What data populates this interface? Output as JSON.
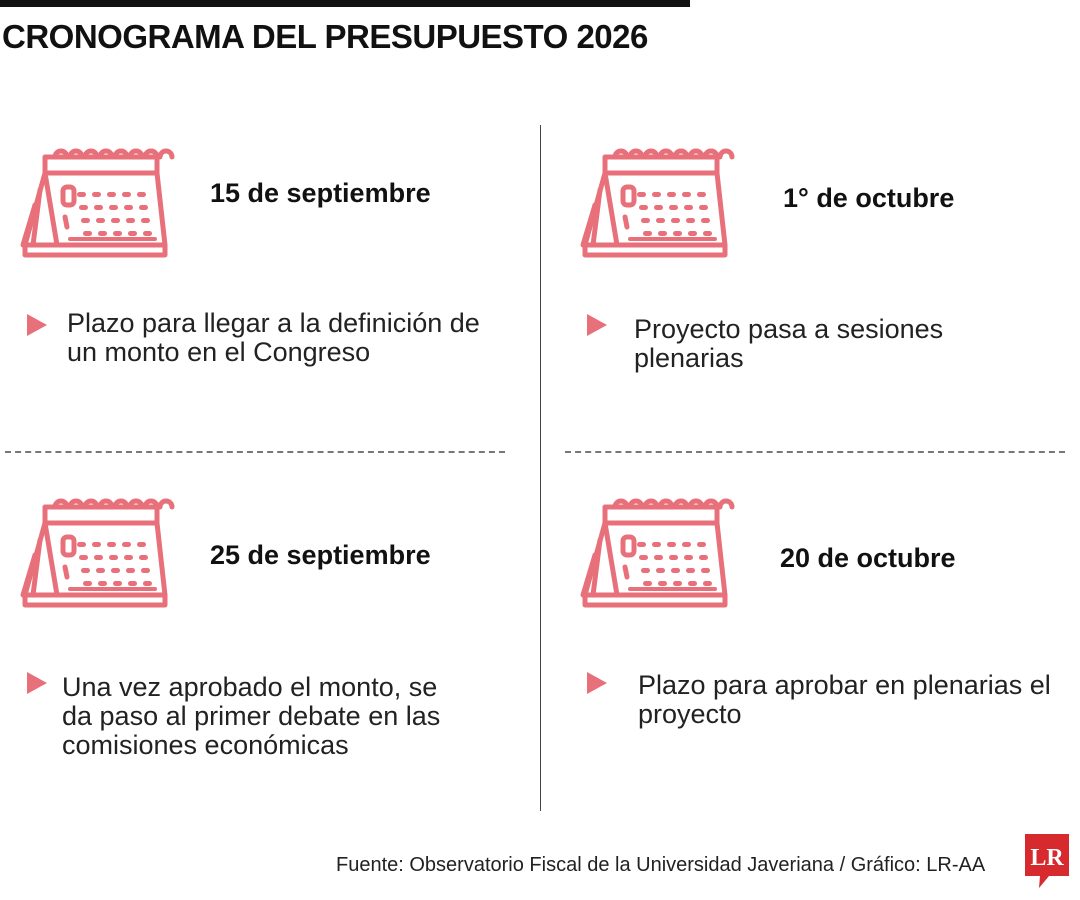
{
  "title": "CRONOGRAMA DEL PRESUPUESTO 2026",
  "accent_color": "#e8707a",
  "events": [
    {
      "date": "15 de septiembre",
      "description": "Plazo para llegar a la definición de un monto en el Congreso",
      "icon": "calendar-icon"
    },
    {
      "date": "1° de octubre",
      "description": "Proyecto pasa a sesiones plenarias",
      "icon": "calendar-icon"
    },
    {
      "date": "25 de septiembre",
      "description": "Una vez aprobado el monto, se da paso al primer debate en las comisiones económicas",
      "icon": "calendar-icon"
    },
    {
      "date": "20 de octubre",
      "description": "Plazo para aprobar en plenarias el proyecto",
      "icon": "calendar-icon"
    }
  ],
  "source": "Fuente: Observatorio Fiscal de la Universidad Javeriana / Gráfico: LR-AA",
  "logo": {
    "text": "LR",
    "color": "#d62a2f"
  }
}
